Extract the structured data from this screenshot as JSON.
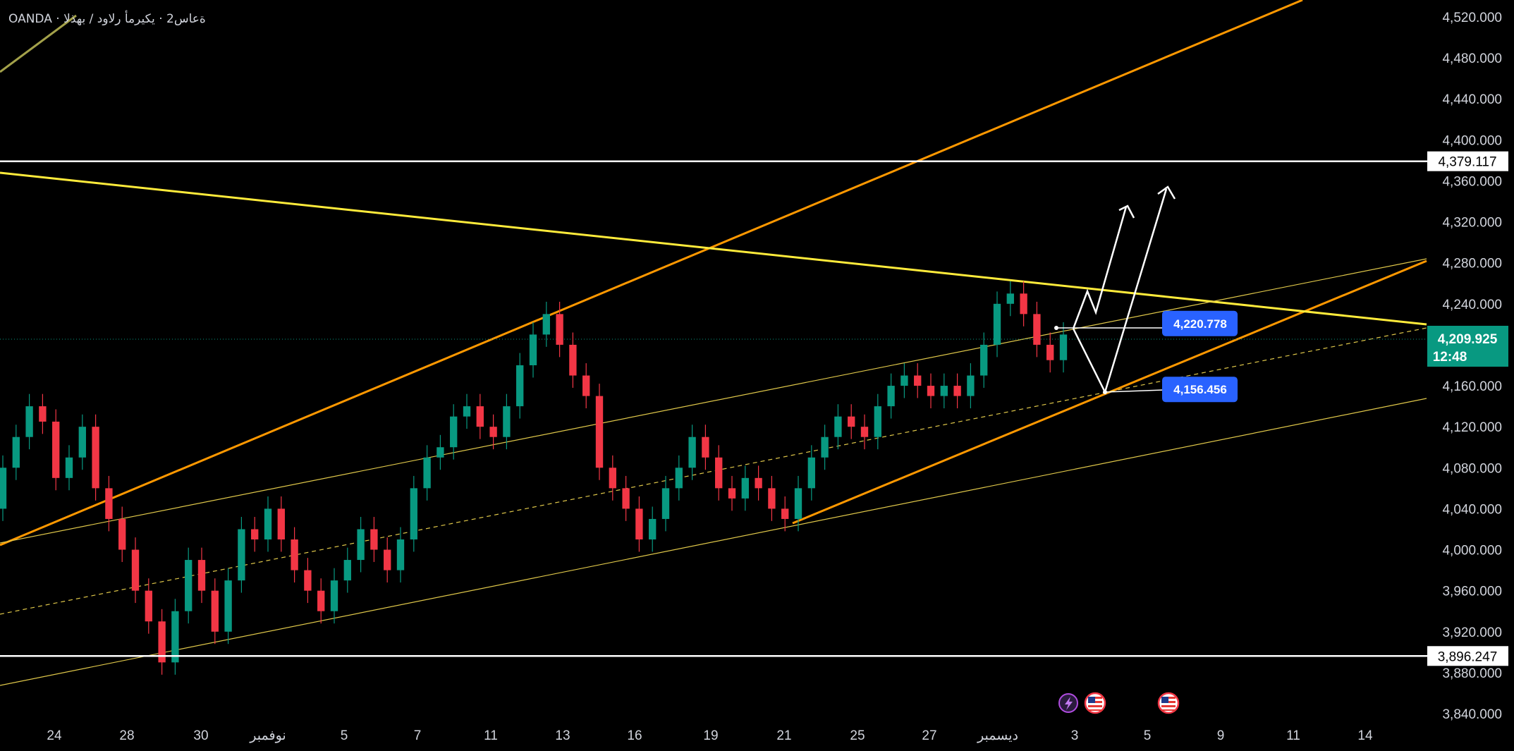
{
  "header": {
    "symbol_text": "OANDA · ةعاس2 · يكيرمأ رلاود / بهذلا"
  },
  "chart_data": {
    "type": "candlestick",
    "y_axis_ticks": [
      "4,520.000",
      "4,480.000",
      "4,440.000",
      "4,400.000",
      "4,360.000",
      "4,320.000",
      "4,280.000",
      "4,240.000",
      "4,160.000",
      "4,120.000",
      "4,080.000",
      "4,040.000",
      "4,000.000",
      "3,960.000",
      "3,920.000",
      "3,880.000",
      "3,840.000"
    ],
    "y_tick_values": [
      4520,
      4480,
      4440,
      4400,
      4360,
      4320,
      4280,
      4240,
      4160,
      4120,
      4080,
      4040,
      4000,
      3960,
      3920,
      3880,
      3840
    ],
    "ylim": [
      3840,
      4520
    ],
    "x_axis_ticks": [
      "24",
      "28",
      "30",
      "نوفمبر",
      "5",
      "7",
      "11",
      "13",
      "16",
      "19",
      "21",
      "25",
      "27",
      "ديسمبر",
      "3",
      "5",
      "9",
      "11",
      "14"
    ],
    "candles": [
      {
        "o": 4040,
        "c": 4080
      },
      {
        "o": 4080,
        "c": 4110
      },
      {
        "o": 4110,
        "c": 4140
      },
      {
        "o": 4140,
        "c": 4125
      },
      {
        "o": 4125,
        "c": 4070
      },
      {
        "o": 4070,
        "c": 4090
      },
      {
        "o": 4090,
        "c": 4120
      },
      {
        "o": 4120,
        "c": 4060
      },
      {
        "o": 4060,
        "c": 4030
      },
      {
        "o": 4030,
        "c": 4000
      },
      {
        "o": 4000,
        "c": 3960
      },
      {
        "o": 3960,
        "c": 3930
      },
      {
        "o": 3930,
        "c": 3890
      },
      {
        "o": 3890,
        "c": 3940
      },
      {
        "o": 3940,
        "c": 3990
      },
      {
        "o": 3990,
        "c": 3960
      },
      {
        "o": 3960,
        "c": 3920
      },
      {
        "o": 3920,
        "c": 3970
      },
      {
        "o": 3970,
        "c": 4020
      },
      {
        "o": 4020,
        "c": 4010
      },
      {
        "o": 4010,
        "c": 4040
      },
      {
        "o": 4040,
        "c": 4010
      },
      {
        "o": 4010,
        "c": 3980
      },
      {
        "o": 3980,
        "c": 3960
      },
      {
        "o": 3960,
        "c": 3940
      },
      {
        "o": 3940,
        "c": 3970
      },
      {
        "o": 3970,
        "c": 3990
      },
      {
        "o": 3990,
        "c": 4020
      },
      {
        "o": 4020,
        "c": 4000
      },
      {
        "o": 4000,
        "c": 3980
      },
      {
        "o": 3980,
        "c": 4010
      },
      {
        "o": 4010,
        "c": 4060
      },
      {
        "o": 4060,
        "c": 4090
      },
      {
        "o": 4090,
        "c": 4100
      },
      {
        "o": 4100,
        "c": 4130
      },
      {
        "o": 4130,
        "c": 4140
      },
      {
        "o": 4140,
        "c": 4120
      },
      {
        "o": 4120,
        "c": 4110
      },
      {
        "o": 4110,
        "c": 4140
      },
      {
        "o": 4140,
        "c": 4180
      },
      {
        "o": 4180,
        "c": 4210
      },
      {
        "o": 4210,
        "c": 4230
      },
      {
        "o": 4230,
        "c": 4200
      },
      {
        "o": 4200,
        "c": 4170
      },
      {
        "o": 4170,
        "c": 4150
      },
      {
        "o": 4150,
        "c": 4080
      },
      {
        "o": 4080,
        "c": 4060
      },
      {
        "o": 4060,
        "c": 4040
      },
      {
        "o": 4040,
        "c": 4010
      },
      {
        "o": 4010,
        "c": 4030
      },
      {
        "o": 4030,
        "c": 4060
      },
      {
        "o": 4060,
        "c": 4080
      },
      {
        "o": 4080,
        "c": 4110
      },
      {
        "o": 4110,
        "c": 4090
      },
      {
        "o": 4090,
        "c": 4060
      },
      {
        "o": 4060,
        "c": 4050
      },
      {
        "o": 4050,
        "c": 4070
      },
      {
        "o": 4070,
        "c": 4060
      },
      {
        "o": 4060,
        "c": 4040
      },
      {
        "o": 4040,
        "c": 4030
      },
      {
        "o": 4030,
        "c": 4060
      },
      {
        "o": 4060,
        "c": 4090
      },
      {
        "o": 4090,
        "c": 4110
      },
      {
        "o": 4110,
        "c": 4130
      },
      {
        "o": 4130,
        "c": 4120
      },
      {
        "o": 4120,
        "c": 4110
      },
      {
        "o": 4110,
        "c": 4140
      },
      {
        "o": 4140,
        "c": 4160
      },
      {
        "o": 4160,
        "c": 4170
      },
      {
        "o": 4170,
        "c": 4160
      },
      {
        "o": 4160,
        "c": 4150
      },
      {
        "o": 4150,
        "c": 4160
      },
      {
        "o": 4160,
        "c": 4150
      },
      {
        "o": 4150,
        "c": 4170
      },
      {
        "o": 4170,
        "c": 4200
      },
      {
        "o": 4200,
        "c": 4240
      },
      {
        "o": 4240,
        "c": 4250
      },
      {
        "o": 4250,
        "c": 4230
      },
      {
        "o": 4230,
        "c": 4200
      },
      {
        "o": 4200,
        "c": 4185
      },
      {
        "o": 4185,
        "c": 4210
      }
    ],
    "horizontal_levels": [
      {
        "value": 4379.117,
        "label": "4,379.117",
        "color": "#ffffff"
      },
      {
        "value": 3896.247,
        "label": "3,896.247",
        "color": "#ffffff"
      }
    ],
    "current_price": {
      "value": 4209.925,
      "label": "4,209.925",
      "countdown": "12:48",
      "color": "#089981"
    },
    "annotations": [
      {
        "label": "4,220.778",
        "value": 4220.778,
        "color": "#2962ff"
      },
      {
        "label": "4,156.456",
        "value": 4156.456,
        "color": "#2962ff"
      }
    ],
    "colors": {
      "up": "#089981",
      "down": "#f23645",
      "orange": "#ff9800",
      "yellow": "#ffeb3b",
      "projection": "#ffffff"
    },
    "event_icons": [
      "lightning-icon",
      "us-flag-icon",
      "us-flag-icon"
    ]
  }
}
